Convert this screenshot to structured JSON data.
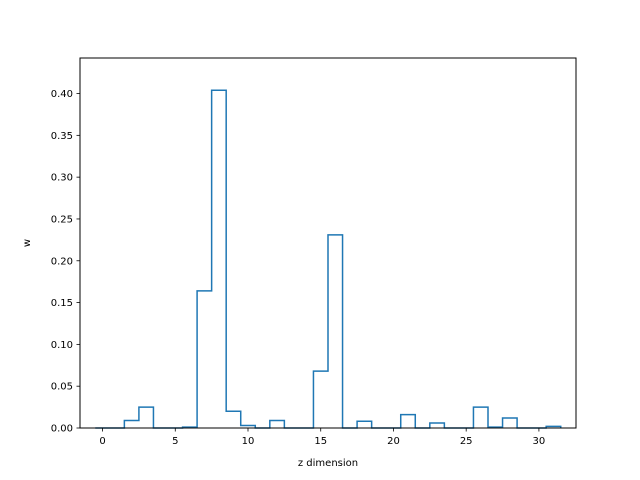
{
  "chart_data": {
    "type": "bar",
    "style": "step-histogram",
    "title": "",
    "xlabel": "z dimension",
    "ylabel": "w",
    "xlim": [
      -1.55,
      32.55
    ],
    "ylim": [
      0,
      0.4425
    ],
    "grid": false,
    "legend": "none",
    "x_ticks": [
      0,
      5,
      10,
      15,
      20,
      25,
      30
    ],
    "x_tick_labels": [
      "0",
      "5",
      "10",
      "15",
      "20",
      "25",
      "30"
    ],
    "y_ticks": [
      0.0,
      0.05,
      0.1,
      0.15,
      0.2,
      0.25,
      0.3,
      0.35,
      0.4
    ],
    "y_tick_labels": [
      "0.00",
      "0.05",
      "0.10",
      "0.15",
      "0.20",
      "0.25",
      "0.30",
      "0.35",
      "0.40"
    ],
    "bin_width": 1,
    "x": [
      0,
      1,
      2,
      3,
      4,
      5,
      6,
      7,
      8,
      9,
      10,
      11,
      12,
      13,
      14,
      15,
      16,
      17,
      18,
      19,
      20,
      21,
      22,
      23,
      24,
      25,
      26,
      27,
      28,
      29,
      30,
      31
    ],
    "values": [
      0.0,
      0.0,
      0.009,
      0.025,
      0.0,
      0.0,
      0.001,
      0.164,
      0.404,
      0.02,
      0.003,
      0.0,
      0.009,
      0.0,
      0.0,
      0.068,
      0.231,
      0.0,
      0.008,
      0.0,
      0.0,
      0.016,
      0.0,
      0.006,
      0.0,
      0.0,
      0.025,
      0.001,
      0.012,
      0.0,
      0.0,
      0.002
    ],
    "line_color": "#1f77b4"
  }
}
